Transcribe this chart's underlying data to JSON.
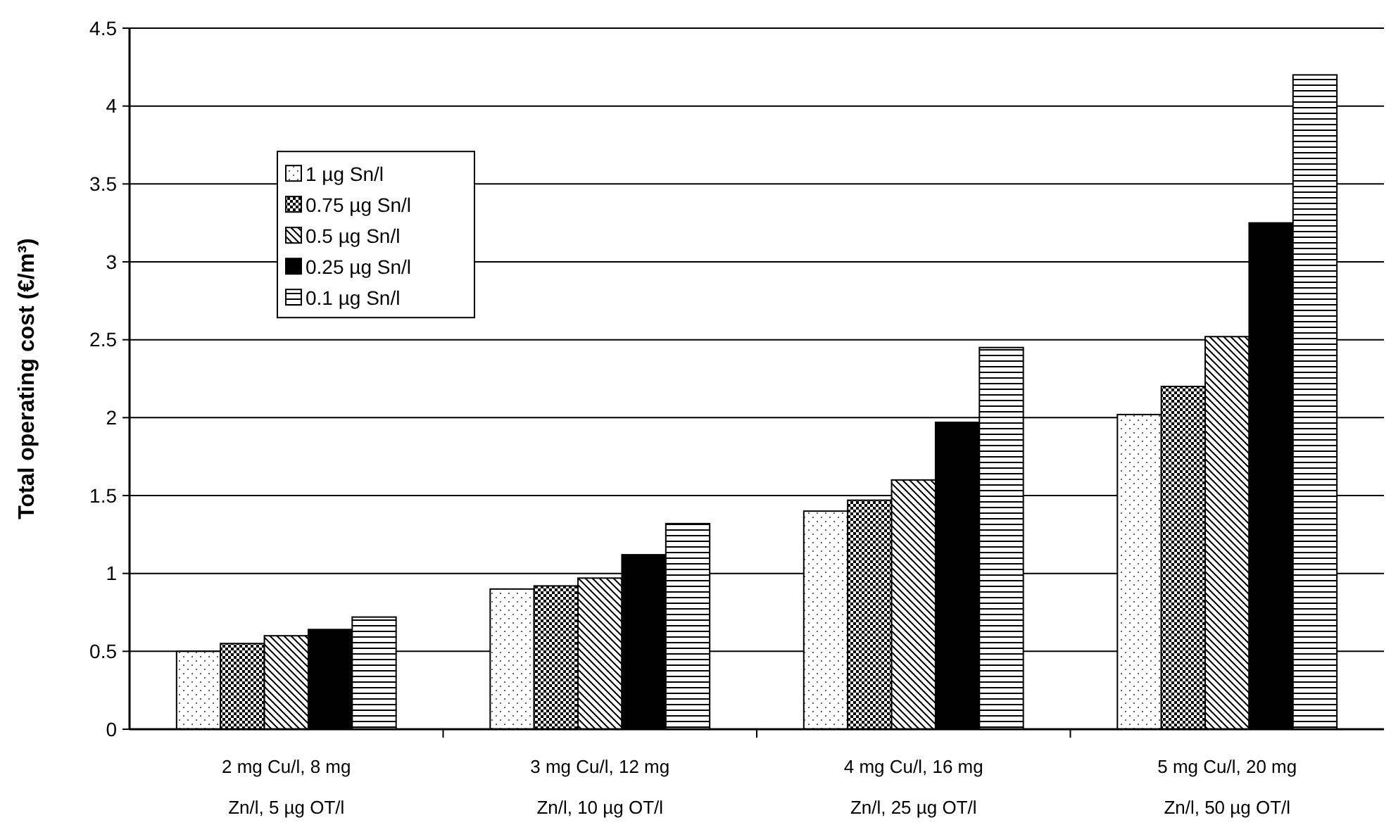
{
  "chart_data": {
    "type": "bar",
    "ylabel": "Total operating cost (€/m³)",
    "categories": [
      "2 mg Cu/l, 8 mg Zn/l, 5 µg OT/l",
      "3 mg Cu/l, 12 mg Zn/l, 10 µg OT/l",
      "4 mg Cu/l, 16 mg Zn/l, 25 µg OT/l",
      "5 mg Cu/l, 20 mg Zn/l, 50 µg OT/l"
    ],
    "series": [
      {
        "name": "1 µg Sn/l",
        "color": "#000000",
        "values": [
          0.5,
          0.9,
          1.4,
          2.02
        ]
      },
      {
        "name": "0.75 µg Sn/l",
        "color": "#000000",
        "values": [
          0.55,
          0.92,
          1.47,
          2.2
        ]
      },
      {
        "name": "0.5 µg Sn/l",
        "color": "#000000",
        "values": [
          0.6,
          0.97,
          1.6,
          2.52
        ]
      },
      {
        "name": "0.25 µg Sn/l",
        "color": "#000000",
        "values": [
          0.64,
          1.12,
          1.97,
          3.25
        ]
      },
      {
        "name": "0.1 µg Sn/l",
        "color": "#000000",
        "values": [
          0.72,
          1.32,
          2.45,
          4.2
        ]
      }
    ],
    "ylim": [
      0,
      4.5
    ],
    "yticks": [
      0,
      0.5,
      1,
      1.5,
      2,
      2.5,
      3,
      3.5,
      4,
      4.5
    ],
    "grid": "y",
    "legend": "top left"
  }
}
